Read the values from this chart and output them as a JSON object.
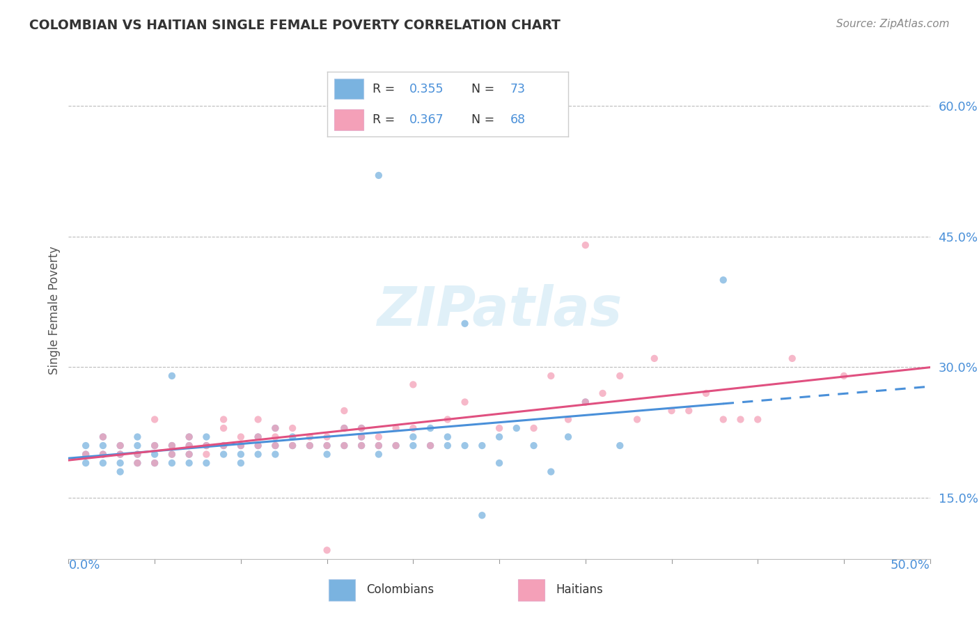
{
  "title": "COLOMBIAN VS HAITIAN SINGLE FEMALE POVERTY CORRELATION CHART",
  "source": "Source: ZipAtlas.com",
  "ylabel": "Single Female Poverty",
  "right_yticks": [
    "15.0%",
    "30.0%",
    "45.0%",
    "60.0%"
  ],
  "right_ytick_vals": [
    0.15,
    0.3,
    0.45,
    0.6
  ],
  "xlim": [
    0.0,
    0.5
  ],
  "ylim": [
    0.08,
    0.65
  ],
  "colombian_R": "0.355",
  "colombian_N": "73",
  "haitian_R": "0.367",
  "haitian_N": "68",
  "colombian_color": "#7ab3e0",
  "haitian_color": "#f4a0b8",
  "trend_colombian_color": "#4a90d9",
  "trend_haitian_color": "#e05080",
  "watermark": "ZIPatlas",
  "colombians_scatter": [
    [
      0.01,
      0.2
    ],
    [
      0.01,
      0.19
    ],
    [
      0.01,
      0.21
    ],
    [
      0.02,
      0.2
    ],
    [
      0.02,
      0.19
    ],
    [
      0.02,
      0.21
    ],
    [
      0.02,
      0.22
    ],
    [
      0.03,
      0.2
    ],
    [
      0.03,
      0.19
    ],
    [
      0.03,
      0.18
    ],
    [
      0.03,
      0.21
    ],
    [
      0.04,
      0.2
    ],
    [
      0.04,
      0.19
    ],
    [
      0.04,
      0.21
    ],
    [
      0.04,
      0.22
    ],
    [
      0.05,
      0.19
    ],
    [
      0.05,
      0.2
    ],
    [
      0.05,
      0.21
    ],
    [
      0.06,
      0.2
    ],
    [
      0.06,
      0.19
    ],
    [
      0.06,
      0.21
    ],
    [
      0.06,
      0.29
    ],
    [
      0.07,
      0.2
    ],
    [
      0.07,
      0.19
    ],
    [
      0.07,
      0.21
    ],
    [
      0.07,
      0.22
    ],
    [
      0.08,
      0.19
    ],
    [
      0.08,
      0.21
    ],
    [
      0.08,
      0.22
    ],
    [
      0.09,
      0.2
    ],
    [
      0.09,
      0.21
    ],
    [
      0.1,
      0.19
    ],
    [
      0.1,
      0.2
    ],
    [
      0.1,
      0.21
    ],
    [
      0.11,
      0.2
    ],
    [
      0.11,
      0.21
    ],
    [
      0.11,
      0.22
    ],
    [
      0.12,
      0.2
    ],
    [
      0.12,
      0.21
    ],
    [
      0.12,
      0.23
    ],
    [
      0.13,
      0.21
    ],
    [
      0.13,
      0.22
    ],
    [
      0.14,
      0.21
    ],
    [
      0.15,
      0.2
    ],
    [
      0.15,
      0.21
    ],
    [
      0.16,
      0.21
    ],
    [
      0.16,
      0.23
    ],
    [
      0.17,
      0.21
    ],
    [
      0.17,
      0.22
    ],
    [
      0.17,
      0.23
    ],
    [
      0.18,
      0.2
    ],
    [
      0.18,
      0.21
    ],
    [
      0.18,
      0.52
    ],
    [
      0.19,
      0.21
    ],
    [
      0.2,
      0.21
    ],
    [
      0.2,
      0.22
    ],
    [
      0.21,
      0.21
    ],
    [
      0.21,
      0.23
    ],
    [
      0.22,
      0.21
    ],
    [
      0.22,
      0.22
    ],
    [
      0.23,
      0.21
    ],
    [
      0.23,
      0.35
    ],
    [
      0.24,
      0.21
    ],
    [
      0.24,
      0.13
    ],
    [
      0.25,
      0.22
    ],
    [
      0.25,
      0.19
    ],
    [
      0.26,
      0.23
    ],
    [
      0.27,
      0.21
    ],
    [
      0.28,
      0.18
    ],
    [
      0.29,
      0.22
    ],
    [
      0.3,
      0.26
    ],
    [
      0.32,
      0.21
    ],
    [
      0.38,
      0.4
    ]
  ],
  "haitians_scatter": [
    [
      0.01,
      0.2
    ],
    [
      0.02,
      0.2
    ],
    [
      0.02,
      0.22
    ],
    [
      0.03,
      0.2
    ],
    [
      0.03,
      0.21
    ],
    [
      0.04,
      0.2
    ],
    [
      0.04,
      0.19
    ],
    [
      0.05,
      0.19
    ],
    [
      0.05,
      0.21
    ],
    [
      0.05,
      0.24
    ],
    [
      0.06,
      0.2
    ],
    [
      0.06,
      0.21
    ],
    [
      0.07,
      0.2
    ],
    [
      0.07,
      0.21
    ],
    [
      0.07,
      0.22
    ],
    [
      0.08,
      0.2
    ],
    [
      0.08,
      0.21
    ],
    [
      0.09,
      0.21
    ],
    [
      0.09,
      0.23
    ],
    [
      0.09,
      0.24
    ],
    [
      0.1,
      0.21
    ],
    [
      0.1,
      0.22
    ],
    [
      0.11,
      0.21
    ],
    [
      0.11,
      0.22
    ],
    [
      0.11,
      0.24
    ],
    [
      0.12,
      0.21
    ],
    [
      0.12,
      0.22
    ],
    [
      0.12,
      0.23
    ],
    [
      0.13,
      0.21
    ],
    [
      0.13,
      0.23
    ],
    [
      0.14,
      0.21
    ],
    [
      0.14,
      0.22
    ],
    [
      0.15,
      0.09
    ],
    [
      0.15,
      0.21
    ],
    [
      0.15,
      0.22
    ],
    [
      0.16,
      0.21
    ],
    [
      0.16,
      0.23
    ],
    [
      0.16,
      0.25
    ],
    [
      0.17,
      0.21
    ],
    [
      0.17,
      0.22
    ],
    [
      0.17,
      0.23
    ],
    [
      0.18,
      0.21
    ],
    [
      0.18,
      0.22
    ],
    [
      0.19,
      0.21
    ],
    [
      0.19,
      0.23
    ],
    [
      0.2,
      0.23
    ],
    [
      0.2,
      0.28
    ],
    [
      0.21,
      0.21
    ],
    [
      0.22,
      0.24
    ],
    [
      0.23,
      0.26
    ],
    [
      0.25,
      0.23
    ],
    [
      0.27,
      0.23
    ],
    [
      0.28,
      0.29
    ],
    [
      0.29,
      0.24
    ],
    [
      0.3,
      0.44
    ],
    [
      0.3,
      0.26
    ],
    [
      0.31,
      0.27
    ],
    [
      0.32,
      0.29
    ],
    [
      0.33,
      0.24
    ],
    [
      0.34,
      0.31
    ],
    [
      0.35,
      0.25
    ],
    [
      0.36,
      0.25
    ],
    [
      0.37,
      0.27
    ],
    [
      0.38,
      0.24
    ],
    [
      0.39,
      0.24
    ],
    [
      0.4,
      0.24
    ],
    [
      0.42,
      0.31
    ],
    [
      0.45,
      0.29
    ]
  ]
}
